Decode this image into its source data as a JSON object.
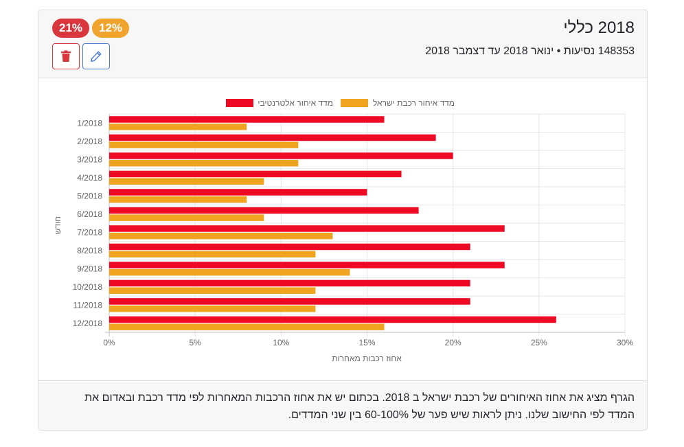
{
  "header": {
    "title": "2018 כללי",
    "subtitle": "148353 נסיעות • ינואר 2018 עד דצמבר 2018",
    "badge_alt": "21%",
    "badge_israel": "12%"
  },
  "colors": {
    "alt": "#ee0a24",
    "israel": "#f0a31e",
    "badge_red": "#d9363e",
    "badge_orange": "#f0a32d"
  },
  "icons": {
    "delete": "trash-icon",
    "edit": "pencil-icon"
  },
  "footer": {
    "text": "הגרף מציג את אחוז האיחורים של רכבת ישראל ב 2018. בכתום יש את אחוז הרכבות המאחרות לפי מדד רכבת ובאדום את המדד לפי החישוב שלנו. ניתן לראות שיש פער של 60-100% בין שני המדדים."
  },
  "chart_data": {
    "type": "bar",
    "orientation": "horizontal",
    "categories": [
      "1/2018",
      "2/2018",
      "3/2018",
      "4/2018",
      "5/2018",
      "6/2018",
      "7/2018",
      "8/2018",
      "9/2018",
      "10/2018",
      "11/2018",
      "12/2018"
    ],
    "series": [
      {
        "name": "מדד איחור אלטרנטיבי",
        "color": "#ee0a24",
        "values": [
          16,
          19,
          20,
          17,
          15,
          18,
          23,
          21,
          23,
          21,
          21,
          26
        ]
      },
      {
        "name": "מדד איחור רכבת ישראל",
        "color": "#f0a31e",
        "values": [
          8,
          11,
          11,
          9,
          8,
          9,
          13,
          12,
          14,
          12,
          12,
          16
        ]
      }
    ],
    "xlabel": "אחוז רכבות מאחרות",
    "ylabel": "חודש",
    "xlim": [
      0,
      30
    ],
    "xticks": [
      0,
      5,
      10,
      15,
      20,
      25,
      30
    ],
    "tick_suffix": "%",
    "grid": true,
    "legend_position": "top"
  }
}
